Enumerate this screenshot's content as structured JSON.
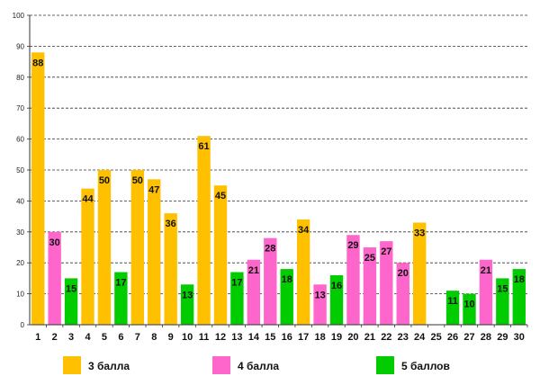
{
  "chart_data": {
    "type": "bar",
    "title": "",
    "xlabel": "",
    "ylabel": "",
    "ylim": [
      0,
      100
    ],
    "yticks": [
      0,
      10,
      20,
      30,
      40,
      50,
      60,
      70,
      80,
      90,
      100
    ],
    "grid": true,
    "legend_position": "bottom",
    "categories": [
      "1",
      "2",
      "3",
      "4",
      "5",
      "6",
      "7",
      "8",
      "9",
      "10",
      "11",
      "12",
      "13",
      "14",
      "15",
      "16",
      "17",
      "18",
      "19",
      "20",
      "21",
      "22",
      "23",
      "24",
      "25",
      "26",
      "27",
      "28",
      "29",
      "30"
    ],
    "values": [
      88,
      30,
      15,
      44,
      50,
      17,
      50,
      47,
      36,
      13,
      61,
      45,
      17,
      21,
      28,
      18,
      34,
      13,
      16,
      29,
      25,
      27,
      20,
      33,
      null,
      11,
      10,
      21,
      15,
      18
    ],
    "series_of_bar": [
      "s3",
      "s4",
      "s5",
      "s3",
      "s3",
      "s5",
      "s3",
      "s3",
      "s3",
      "s5",
      "s3",
      "s3",
      "s5",
      "s4",
      "s4",
      "s5",
      "s3",
      "s4",
      "s5",
      "s4",
      "s4",
      "s4",
      "s4",
      "s3",
      null,
      "s5",
      "s5",
      "s4",
      "s5",
      "s5"
    ],
    "series": [
      {
        "key": "s3",
        "name": "3 балла",
        "color": "#ffc000"
      },
      {
        "key": "s4",
        "name": "4 балла",
        "color": "#ff66cc"
      },
      {
        "key": "s5",
        "name": "5 баллов",
        "color": "#00cc00"
      }
    ]
  }
}
